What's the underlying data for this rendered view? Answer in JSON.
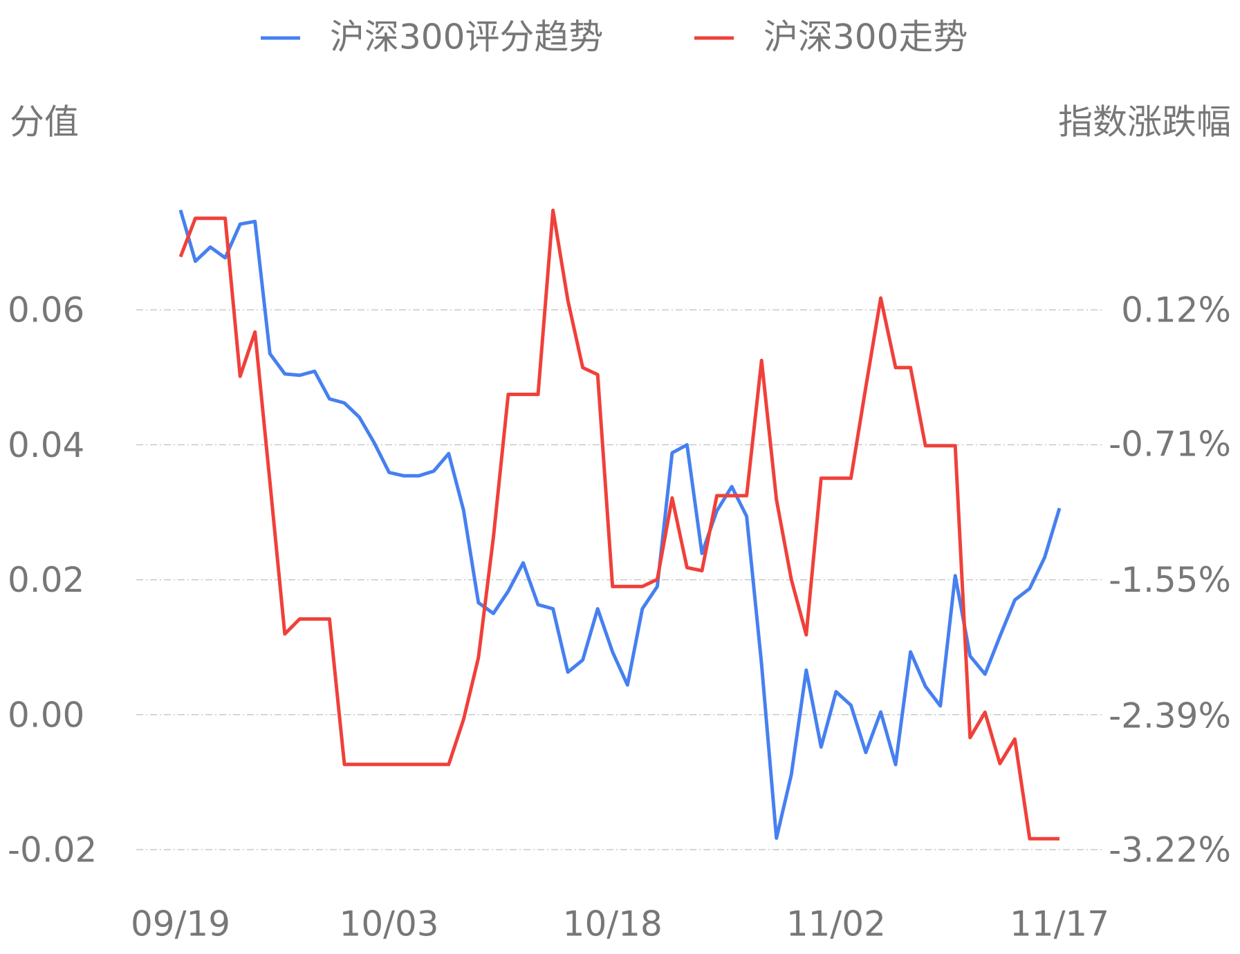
{
  "chart_data": {
    "type": "line",
    "y_label": "分值",
    "y2_label": "指数涨跌幅",
    "categories": [
      "09/19",
      null,
      null,
      null,
      null,
      null,
      null,
      null,
      null,
      null,
      null,
      null,
      null,
      null,
      "10/03",
      null,
      null,
      null,
      null,
      null,
      null,
      null,
      null,
      null,
      null,
      null,
      null,
      null,
      null,
      "10/18",
      null,
      null,
      null,
      null,
      null,
      null,
      null,
      null,
      null,
      null,
      null,
      null,
      null,
      null,
      "11/02",
      null,
      null,
      null,
      null,
      null,
      null,
      null,
      null,
      null,
      null,
      null,
      null,
      null,
      null,
      "11/17"
    ],
    "series": [
      {
        "name": "沪深300评分趋势",
        "color": "#4680f0",
        "axis": "y",
        "values": [
          0.0748,
          0.0672,
          0.0693,
          0.0677,
          0.0727,
          0.0731,
          0.0535,
          0.0505,
          0.0503,
          0.0509,
          0.0468,
          0.0462,
          0.0441,
          0.0403,
          0.0359,
          0.0354,
          0.0354,
          0.0361,
          0.0387,
          0.0303,
          0.0166,
          0.015,
          0.0183,
          0.0225,
          0.0163,
          0.0157,
          0.0063,
          0.0081,
          0.0157,
          0.0093,
          0.0044,
          0.0157,
          0.019,
          0.0388,
          0.04,
          0.0239,
          0.0302,
          0.0338,
          0.0294,
          0.0075,
          -0.0183,
          -0.0089,
          0.0066,
          -0.0048,
          0.0034,
          0.0014,
          -0.0056,
          0.0004,
          -0.0074,
          0.0093,
          0.0042,
          0.0013,
          0.0206,
          0.0087,
          0.006,
          0.0116,
          0.017,
          0.0187,
          0.0233,
          0.0306
        ]
      },
      {
        "name": "沪深300走势",
        "color": "#f0403a",
        "axis": "y2",
        "values": [
          0.448,
          0.687,
          0.687,
          0.687,
          -0.291,
          -0.017,
          -0.946,
          -1.886,
          -1.793,
          -1.793,
          -1.793,
          -2.693,
          -2.693,
          -2.693,
          -2.693,
          -2.693,
          -2.693,
          -2.693,
          -2.693,
          -2.414,
          -2.032,
          -1.289,
          -0.403,
          -0.403,
          -0.403,
          0.736,
          0.179,
          -0.237,
          -0.281,
          -1.592,
          -1.592,
          -1.592,
          -1.548,
          -1.044,
          -1.475,
          -1.494,
          -1.03,
          -1.03,
          -1.03,
          -0.193,
          -1.054,
          -1.548,
          -1.891,
          -0.922,
          -0.922,
          -0.922,
          -0.359,
          0.193,
          -0.237,
          -0.237,
          -0.721,
          -0.721,
          -0.721,
          -2.527,
          -2.37,
          -2.688,
          -2.536,
          -3.153,
          -3.153,
          -3.153
        ]
      }
    ],
    "ylim": [
      -0.02,
      0.08
    ],
    "yticks": [
      0.06,
      0.04,
      0.02,
      {
        "value": 0,
        "label": "0.00"
      },
      -0.02
    ],
    "y2lim": [
      -3.22,
      0.955
    ],
    "y2ticks": [
      {
        "value": 0.12,
        "label": "0.12%"
      },
      {
        "value": -0.71,
        "label": "-0.71%"
      },
      {
        "value": -1.55,
        "label": "-1.55%"
      },
      {
        "value": -2.39,
        "label": "-2.39%"
      },
      {
        "value": -3.22,
        "label": "-3.22%"
      }
    ],
    "grid": true,
    "legend": "top"
  }
}
